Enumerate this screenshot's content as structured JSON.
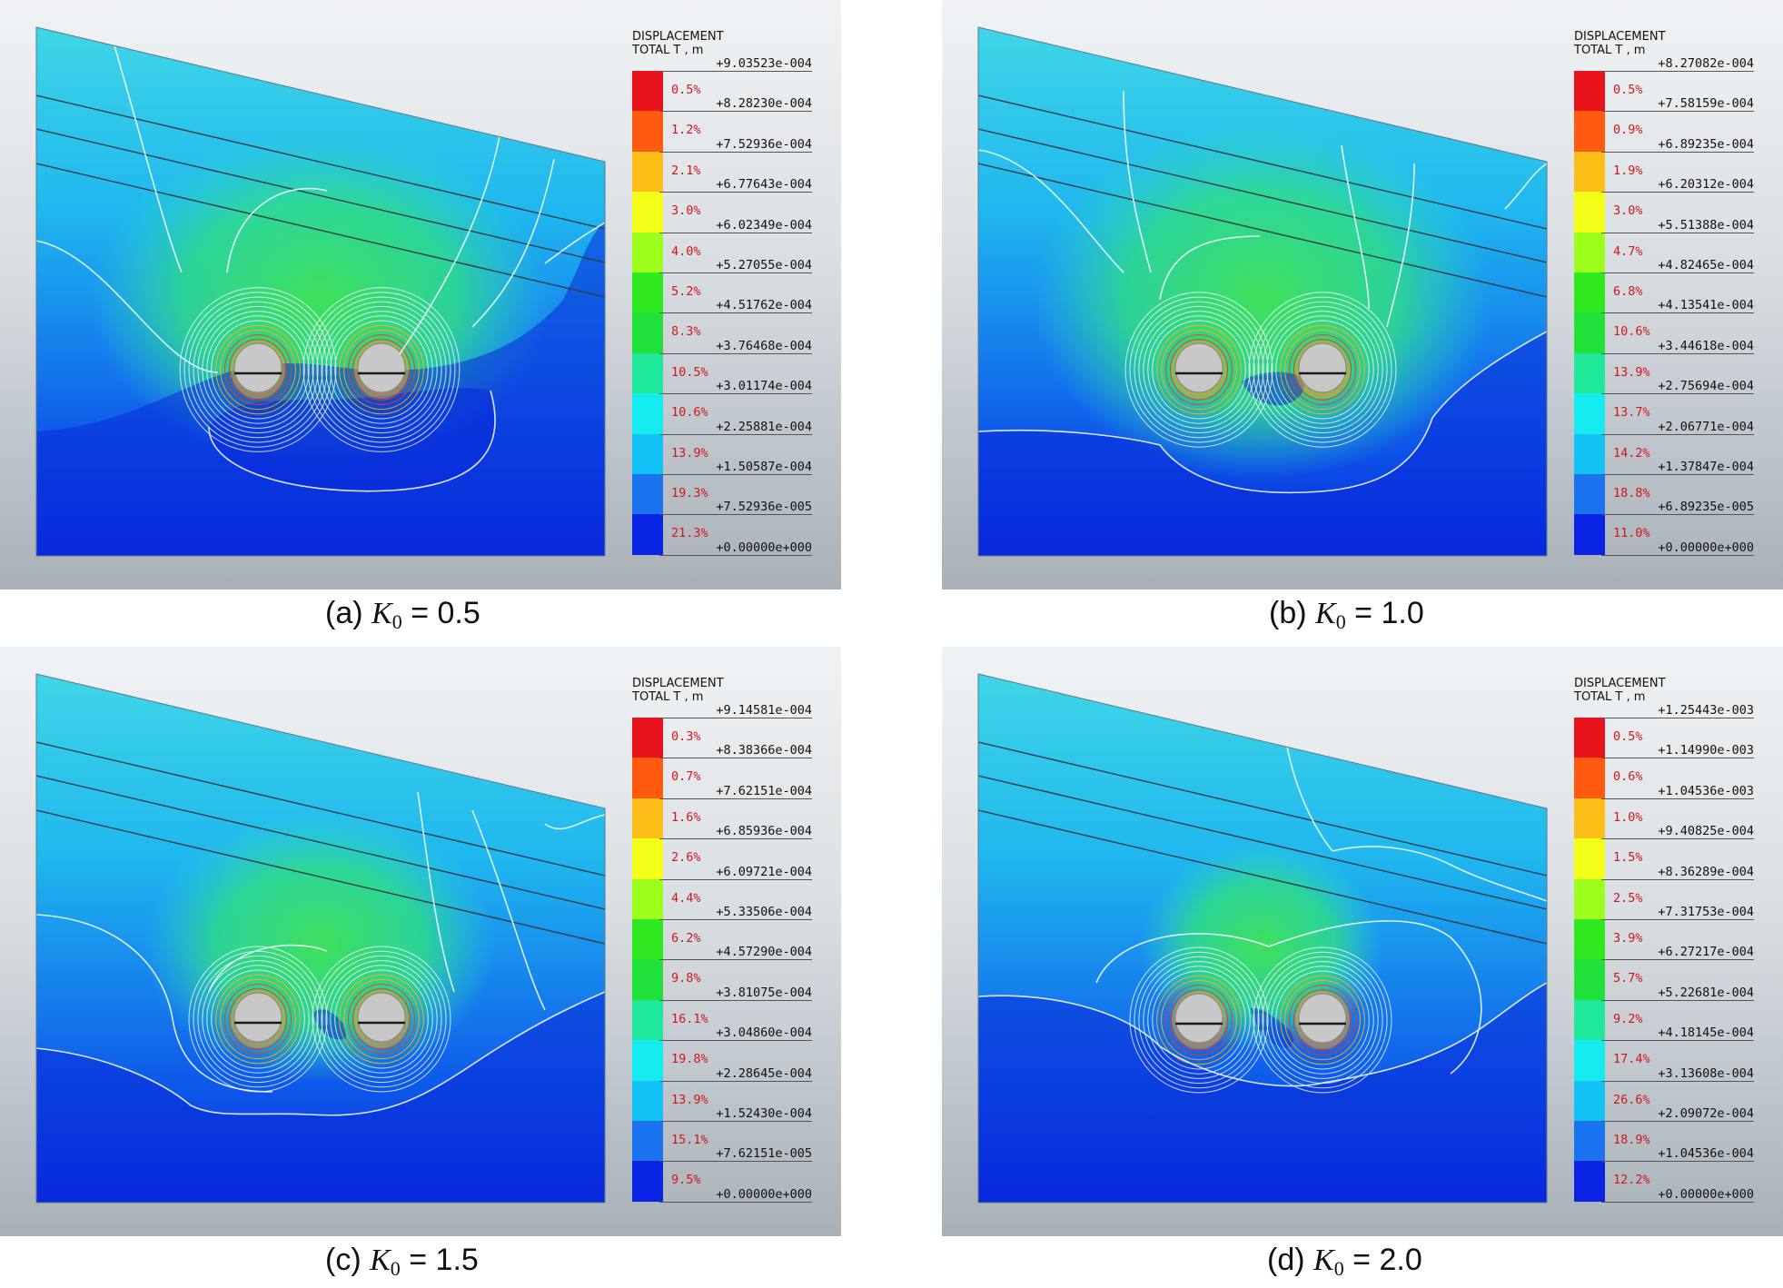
{
  "colors": [
    "#e8121a",
    "#ff5a10",
    "#ffbe17",
    "#f4ff1a",
    "#9cff1c",
    "#2fe81f",
    "#20e23a",
    "#1fe89a",
    "#14ecf0",
    "#14c3f5",
    "#1a73ef",
    "#0a24e6"
  ],
  "panels": [
    {
      "legend_title": "DISPLACEMENT\nTOTAL T , m",
      "values": [
        "+9.03523e-004",
        "+8.28230e-004",
        "+7.52936e-004",
        "+6.77643e-004",
        "+6.02349e-004",
        "+5.27055e-004",
        "+4.51762e-004",
        "+3.76468e-004",
        "+3.01174e-004",
        "+2.25881e-004",
        "+1.50587e-004",
        "+7.52936e-005",
        "+0.00000e+000"
      ],
      "percents": [
        "0.5%",
        "1.2%",
        "2.1%",
        "3.0%",
        "4.0%",
        "5.2%",
        "8.3%",
        "10.5%",
        "10.6%",
        "13.9%",
        "19.3%",
        "21.3%"
      ],
      "caption": {
        "prefix": "(a)",
        "k": "K",
        "sub": "0",
        "value": "= 0.5"
      }
    },
    {
      "legend_title": "DISPLACEMENT\nTOTAL T , m",
      "values": [
        "+8.27082e-004",
        "+7.58159e-004",
        "+6.89235e-004",
        "+6.20312e-004",
        "+5.51388e-004",
        "+4.82465e-004",
        "+4.13541e-004",
        "+3.44618e-004",
        "+2.75694e-004",
        "+2.06771e-004",
        "+1.37847e-004",
        "+6.89235e-005",
        "+0.00000e+000"
      ],
      "percents": [
        "0.5%",
        "0.9%",
        "1.9%",
        "3.0%",
        "4.7%",
        "6.8%",
        "10.6%",
        "13.9%",
        "13.7%",
        "14.2%",
        "18.8%",
        "11.0%"
      ],
      "caption": {
        "prefix": "(b)",
        "k": "K",
        "sub": "0",
        "value": "= 1.0"
      }
    },
    {
      "legend_title": "DISPLACEMENT\nTOTAL T , m",
      "values": [
        "+9.14581e-004",
        "+8.38366e-004",
        "+7.62151e-004",
        "+6.85936e-004",
        "+6.09721e-004",
        "+5.33506e-004",
        "+4.57290e-004",
        "+3.81075e-004",
        "+3.04860e-004",
        "+2.28645e-004",
        "+1.52430e-004",
        "+7.62151e-005",
        "+0.00000e+000"
      ],
      "percents": [
        "0.3%",
        "0.7%",
        "1.6%",
        "2.6%",
        "4.4%",
        "6.2%",
        "9.8%",
        "16.1%",
        "19.8%",
        "13.9%",
        "15.1%",
        "9.5%"
      ],
      "caption": {
        "prefix": "(c)",
        "k": "K",
        "sub": "0",
        "value": "= 1.5"
      }
    },
    {
      "legend_title": "DISPLACEMENT\nTOTAL T , m",
      "values": [
        "+1.25443e-003",
        "+1.14990e-003",
        "+1.04536e-003",
        "+9.40825e-004",
        "+8.36289e-004",
        "+7.31753e-004",
        "+6.27217e-004",
        "+5.22681e-004",
        "+4.18145e-004",
        "+3.13608e-004",
        "+2.09072e-004",
        "+1.04536e-004",
        "+0.00000e+000"
      ],
      "percents": [
        "0.5%",
        "0.6%",
        "1.0%",
        "1.5%",
        "2.5%",
        "3.9%",
        "5.7%",
        "9.2%",
        "17.4%",
        "26.6%",
        "18.9%",
        "12.2%"
      ],
      "caption": {
        "prefix": "(d)",
        "k": "K",
        "sub": "0",
        "value": "= 2.0"
      }
    }
  ]
}
